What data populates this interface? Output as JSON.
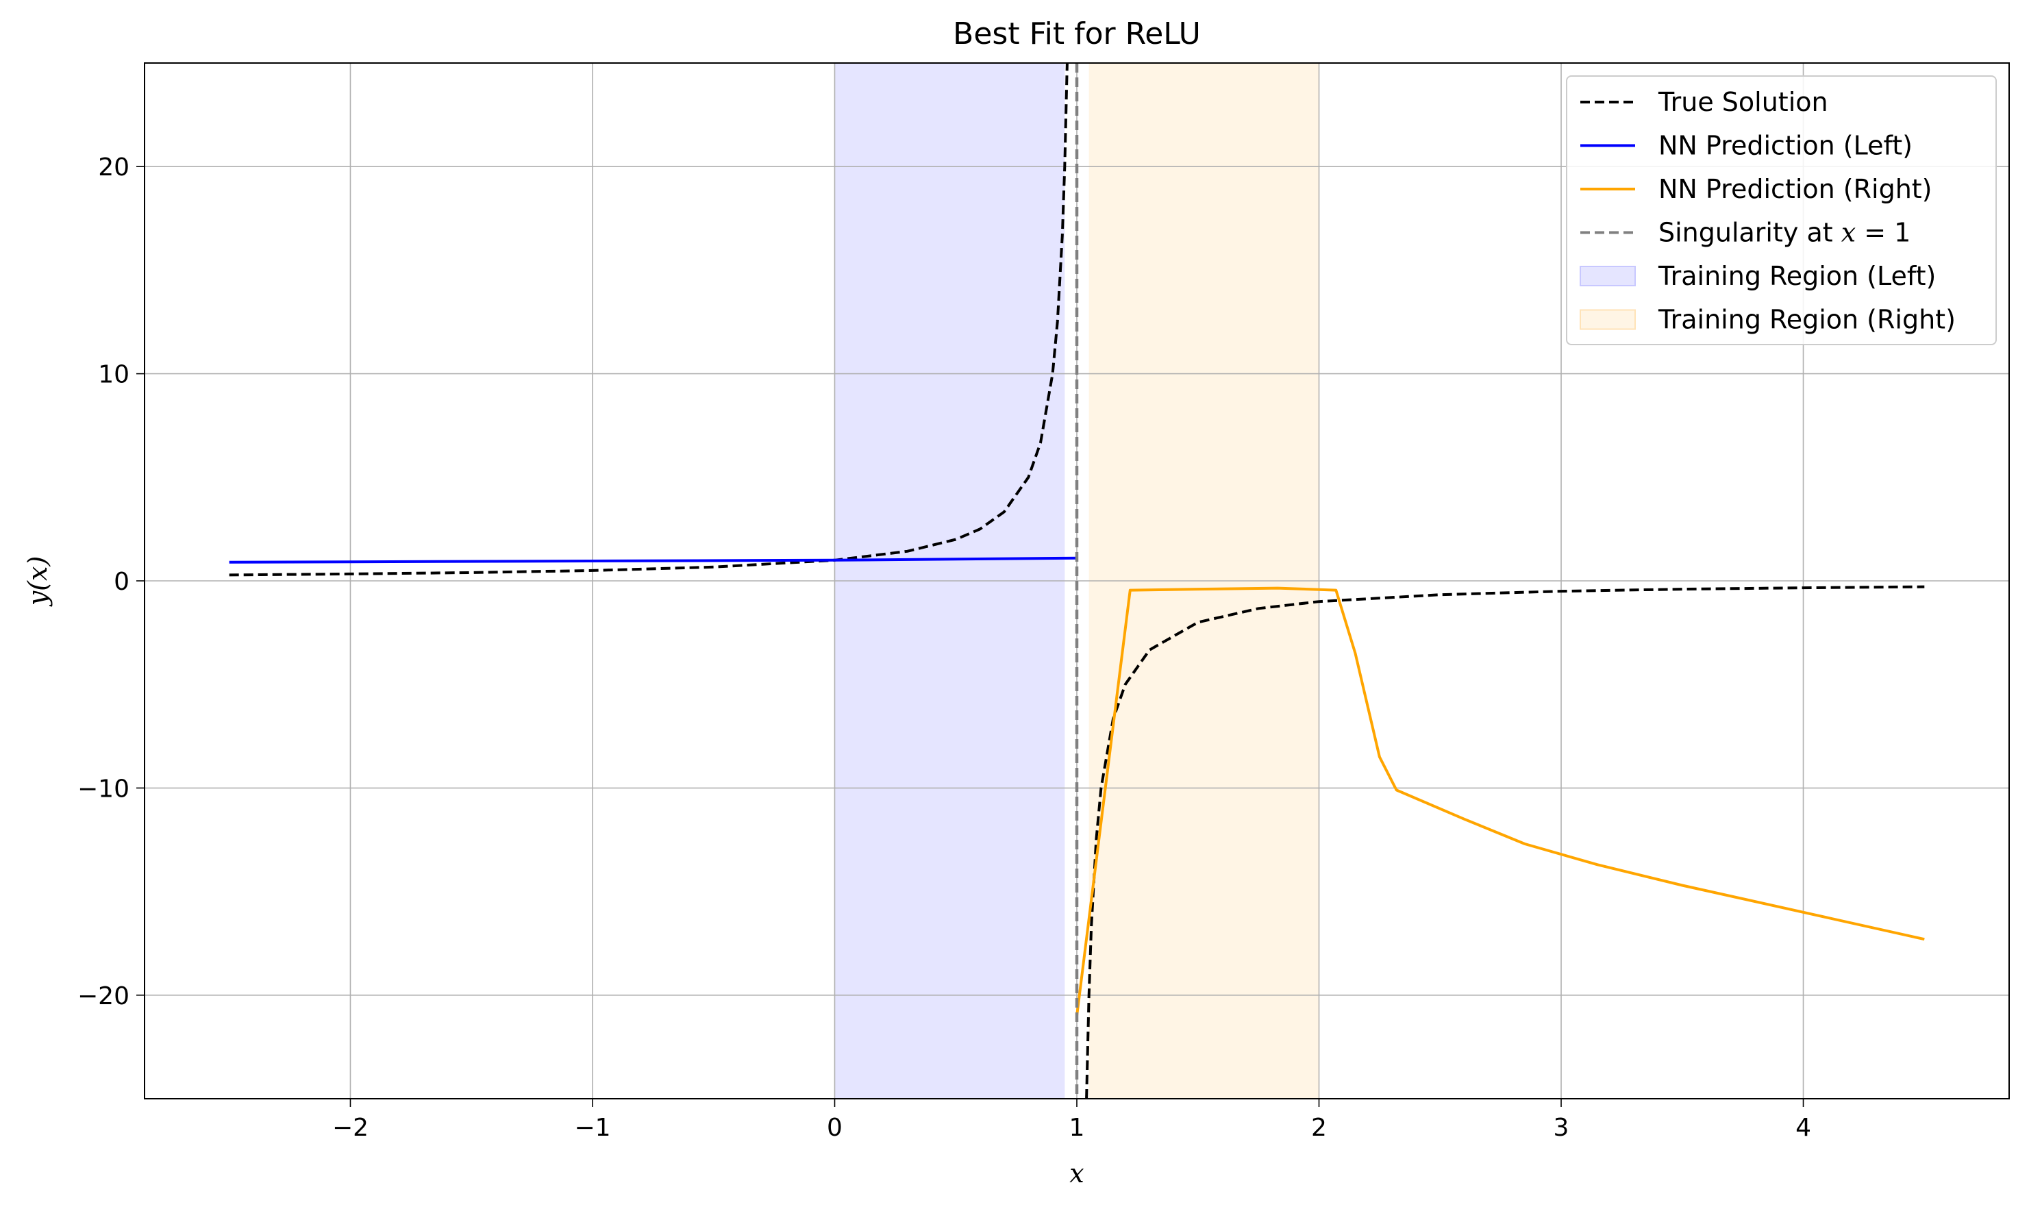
{
  "chart_data": {
    "type": "line",
    "title": "Best Fit for ReLU",
    "xlabel": "x",
    "ylabel": "y(x)",
    "xlim": [
      -2.85,
      4.85
    ],
    "ylim": [
      -25,
      25
    ],
    "xticks": [
      -2,
      -1,
      0,
      1,
      2,
      3,
      4
    ],
    "xtick_labels": [
      "−2",
      "−1",
      "0",
      "1",
      "2",
      "3",
      "4"
    ],
    "yticks": [
      -20,
      -10,
      0,
      10,
      20
    ],
    "ytick_labels": [
      "−20",
      "−10",
      "0",
      "10",
      "20"
    ],
    "grid": true,
    "legend_position": "top-right",
    "regions": [
      {
        "name": "Training Region (Left)",
        "x0": 0,
        "x1": 0.95,
        "color": "#e5e5ff"
      },
      {
        "name": "Training Region (Right)",
        "x0": 1.05,
        "x1": 2.0,
        "color": "#fff5e5"
      }
    ],
    "vline": {
      "name": "Singularity at x = 1",
      "x": 1,
      "color": "#808080",
      "style": "dashed"
    },
    "series": [
      {
        "name": "True Solution",
        "color": "#000000",
        "style": "dashed",
        "segments": [
          {
            "x": [
              -2.5,
              -2.0,
              -1.5,
              -1.0,
              -0.5,
              0.0,
              0.3,
              0.5,
              0.6,
              0.7,
              0.8,
              0.85,
              0.9,
              0.92,
              0.94,
              0.95,
              0.96
            ],
            "y": [
              0.286,
              0.333,
              0.4,
              0.5,
              0.667,
              1.0,
              1.429,
              2.0,
              2.5,
              3.333,
              5.0,
              6.667,
              10.0,
              12.5,
              16.667,
              20.0,
              25.0
            ]
          },
          {
            "x": [
              1.04,
              1.05,
              1.06,
              1.08,
              1.1,
              1.15,
              1.2,
              1.3,
              1.5,
              1.75,
              2.0,
              2.5,
              3.0,
              3.5,
              4.0,
              4.5
            ],
            "y": [
              -25.0,
              -20.0,
              -16.667,
              -12.5,
              -10.0,
              -6.667,
              -5.0,
              -3.333,
              -2.0,
              -1.333,
              -1.0,
              -0.667,
              -0.5,
              -0.4,
              -0.333,
              -0.286
            ]
          }
        ]
      },
      {
        "name": "NN Prediction (Left)",
        "color": "#0000ff",
        "style": "solid",
        "segments": [
          {
            "x": [
              -2.5,
              0.0,
              1.0
            ],
            "y": [
              0.9,
              1.0,
              1.1
            ]
          }
        ]
      },
      {
        "name": "NN Prediction (Right)",
        "color": "#ffa500",
        "style": "solid",
        "segments": [
          {
            "x": [
              1.0,
              1.15,
              1.22,
              1.5,
              1.83,
              2.07,
              2.15,
              2.25,
              2.32,
              2.6,
              2.85,
              3.15,
              3.5,
              4.0,
              4.5
            ],
            "y": [
              -21.0,
              -7.0,
              -0.45,
              -0.4,
              -0.35,
              -0.45,
              -3.5,
              -8.5,
              -10.1,
              -11.5,
              -12.7,
              -13.7,
              -14.7,
              -16.0,
              -17.3
            ]
          }
        ]
      }
    ],
    "legend": [
      {
        "label": "True Solution",
        "kind": "line",
        "color": "#000000",
        "style": "dashed"
      },
      {
        "label": "NN Prediction (Left)",
        "kind": "line",
        "color": "#0000ff",
        "style": "solid"
      },
      {
        "label": "NN Prediction (Right)",
        "kind": "line",
        "color": "#ffa500",
        "style": "solid"
      },
      {
        "label_prefix": "Singularity at ",
        "label_math": "x",
        "label_suffix": " = 1",
        "kind": "line",
        "color": "#808080",
        "style": "dashed"
      },
      {
        "label": "Training Region (Left)",
        "kind": "patch",
        "color": "#e5e5ff",
        "edge": "#c8c8ff"
      },
      {
        "label": "Training Region (Right)",
        "kind": "patch",
        "color": "#fff5e5",
        "edge": "#ffe3b8"
      }
    ]
  }
}
